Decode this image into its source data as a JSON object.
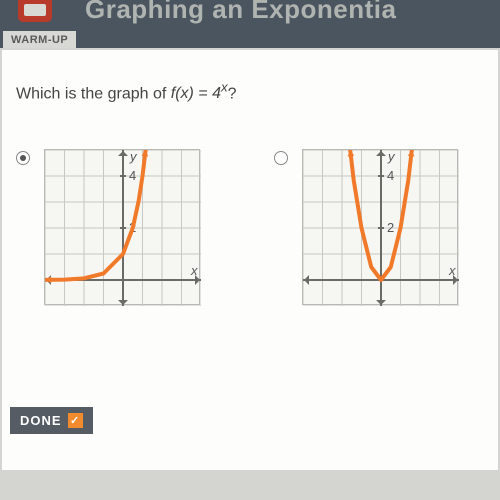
{
  "header": {
    "tab_label": "WARM-UP",
    "title": "Graphing an Exponentia"
  },
  "question": {
    "prefix": "Which is the graph of ",
    "func": "f(x) = 4",
    "suffix": "?"
  },
  "options": [
    {
      "selected": true,
      "graph": {
        "type": "exponential",
        "width": 156,
        "height": 156,
        "bg": "#f6f6f3",
        "grid_color": "#c8c8c2",
        "axis_color": "#6a6a66",
        "curve_color": "#f07a2a",
        "curve_width": 4,
        "x_range": [
          -4,
          4
        ],
        "y_range": [
          -1,
          5
        ],
        "grid_step": 1,
        "y_ticks": [
          {
            "v": 2,
            "label": "2"
          },
          {
            "v": 4,
            "label": "4"
          }
        ],
        "axis_labels": {
          "x": "x",
          "y": "y"
        },
        "curve_pts": [
          [
            -4,
            0.004
          ],
          [
            -3,
            0.016
          ],
          [
            -2,
            0.063
          ],
          [
            -1,
            0.25
          ],
          [
            0,
            1
          ],
          [
            0.5,
            2
          ],
          [
            0.8,
            3.03
          ],
          [
            1,
            4
          ],
          [
            1.16,
            5
          ]
        ],
        "arrows": {
          "left": true,
          "right": true
        }
      }
    },
    {
      "selected": false,
      "graph": {
        "type": "parabola",
        "width": 156,
        "height": 156,
        "bg": "#f6f6f3",
        "grid_color": "#c8c8c2",
        "axis_color": "#6a6a66",
        "curve_color": "#f07a2a",
        "curve_width": 4,
        "x_range": [
          -4,
          4
        ],
        "y_range": [
          -1,
          5
        ],
        "grid_step": 1,
        "y_ticks": [
          {
            "v": 2,
            "label": "2"
          },
          {
            "v": 4,
            "label": "4"
          }
        ],
        "axis_labels": {
          "x": "x",
          "y": "y"
        },
        "curve_pts": [
          [
            -1.58,
            5
          ],
          [
            -1.4,
            3.84
          ],
          [
            -1,
            2
          ],
          [
            -0.5,
            0.5
          ],
          [
            0,
            0
          ],
          [
            0.5,
            0.5
          ],
          [
            1,
            2
          ],
          [
            1.4,
            3.84
          ],
          [
            1.58,
            5
          ]
        ],
        "arrows": {
          "left": true,
          "right": true
        }
      }
    }
  ],
  "done": {
    "label": "DONE",
    "checked": true
  },
  "colors": {
    "header_bg": "#4a5560",
    "accent": "#f28b2e"
  }
}
